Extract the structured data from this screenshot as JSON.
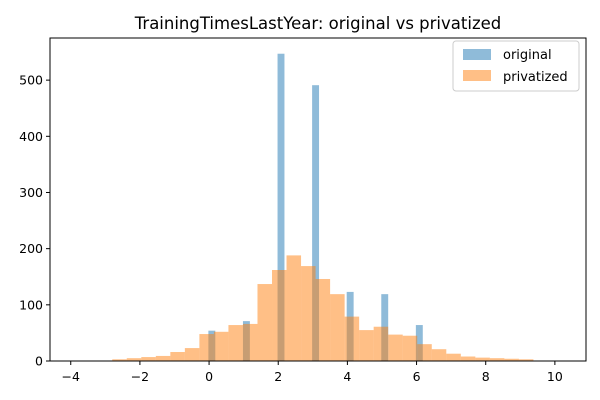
{
  "chart_data": {
    "type": "histogram",
    "title": "TrainingTimesLastYear: original vs privatized",
    "xlabel": "",
    "ylabel": "",
    "xlim": [
      -4.6,
      10.9
    ],
    "ylim": [
      0,
      575
    ],
    "x_ticks": [
      "−4",
      "−2",
      "0",
      "2",
      "4",
      "6",
      "8",
      "10"
    ],
    "x_tick_values": [
      -4,
      -2,
      0,
      2,
      4,
      6,
      8,
      10
    ],
    "y_ticks": [
      "0",
      "100",
      "200",
      "300",
      "400",
      "500"
    ],
    "y_tick_values": [
      0,
      100,
      200,
      300,
      400,
      500
    ],
    "grid": false,
    "legend_position": "top-right",
    "series": [
      {
        "name": "original",
        "color": "#1f77b4",
        "alpha": 0.5,
        "bins": [
          {
            "x0": -0.02,
            "x1": 0.18,
            "value": 54
          },
          {
            "x0": 0.98,
            "x1": 1.18,
            "value": 71
          },
          {
            "x0": 1.98,
            "x1": 2.18,
            "value": 547
          },
          {
            "x0": 2.98,
            "x1": 3.18,
            "value": 491
          },
          {
            "x0": 3.98,
            "x1": 4.18,
            "value": 123
          },
          {
            "x0": 4.98,
            "x1": 5.18,
            "value": 119
          },
          {
            "x0": 5.98,
            "x1": 6.18,
            "value": 64
          }
        ]
      },
      {
        "name": "privatized",
        "color": "#ff7f0e",
        "alpha": 0.5,
        "bins": [
          {
            "x0": -2.8,
            "x1": -2.38,
            "value": 3
          },
          {
            "x0": -2.38,
            "x1": -1.96,
            "value": 5
          },
          {
            "x0": -1.96,
            "x1": -1.54,
            "value": 7
          },
          {
            "x0": -1.54,
            "x1": -1.12,
            "value": 9
          },
          {
            "x0": -1.12,
            "x1": -0.7,
            "value": 16
          },
          {
            "x0": -0.7,
            "x1": -0.28,
            "value": 23
          },
          {
            "x0": -0.28,
            "x1": 0.14,
            "value": 48
          },
          {
            "x0": 0.14,
            "x1": 0.56,
            "value": 52
          },
          {
            "x0": 0.56,
            "x1": 0.98,
            "value": 64
          },
          {
            "x0": 0.98,
            "x1": 1.4,
            "value": 66
          },
          {
            "x0": 1.4,
            "x1": 1.82,
            "value": 137
          },
          {
            "x0": 1.82,
            "x1": 2.24,
            "value": 162
          },
          {
            "x0": 2.24,
            "x1": 2.66,
            "value": 188
          },
          {
            "x0": 2.66,
            "x1": 3.08,
            "value": 169
          },
          {
            "x0": 3.08,
            "x1": 3.5,
            "value": 146
          },
          {
            "x0": 3.5,
            "x1": 3.92,
            "value": 119
          },
          {
            "x0": 3.92,
            "x1": 4.34,
            "value": 79
          },
          {
            "x0": 4.34,
            "x1": 4.76,
            "value": 55
          },
          {
            "x0": 4.76,
            "x1": 5.18,
            "value": 61
          },
          {
            "x0": 5.18,
            "x1": 5.6,
            "value": 47
          },
          {
            "x0": 5.6,
            "x1": 6.02,
            "value": 45
          },
          {
            "x0": 6.02,
            "x1": 6.44,
            "value": 30
          },
          {
            "x0": 6.44,
            "x1": 6.86,
            "value": 21
          },
          {
            "x0": 6.86,
            "x1": 7.28,
            "value": 13
          },
          {
            "x0": 7.28,
            "x1": 7.7,
            "value": 8
          },
          {
            "x0": 7.7,
            "x1": 8.12,
            "value": 6
          },
          {
            "x0": 8.12,
            "x1": 8.54,
            "value": 5
          },
          {
            "x0": 8.54,
            "x1": 8.96,
            "value": 4
          },
          {
            "x0": 8.96,
            "x1": 9.38,
            "value": 3
          }
        ]
      }
    ]
  }
}
